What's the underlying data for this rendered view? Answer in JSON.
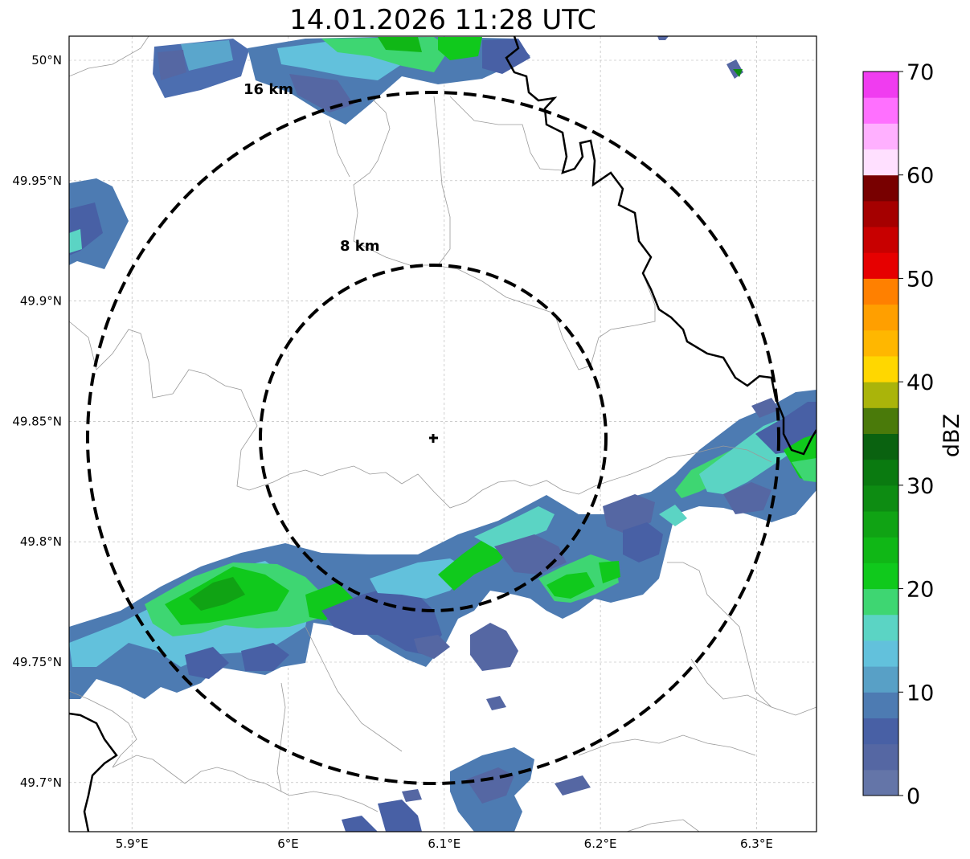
{
  "title": "14.01.2026 11:28 UTC",
  "map": {
    "lon_range": [
      5.86,
      6.34
    ],
    "lat_range": [
      49.68,
      50.01
    ],
    "lon_ticks": [
      {
        "value": 5.9,
        "label": "5.9°E"
      },
      {
        "value": 6.0,
        "label": "6°E"
      },
      {
        "value": 6.1,
        "label": "6.1°E"
      },
      {
        "value": 6.2,
        "label": "6.2°E"
      },
      {
        "value": 6.3,
        "label": "6.3°E"
      }
    ],
    "lat_ticks": [
      {
        "value": 50.0,
        "label": "50°N"
      },
      {
        "value": 49.95,
        "label": "49.95°N"
      },
      {
        "value": 49.9,
        "label": "49.9°N"
      },
      {
        "value": 49.85,
        "label": "49.85°N"
      },
      {
        "value": 49.8,
        "label": "49.8°N"
      },
      {
        "value": 49.75,
        "label": "49.75°N"
      },
      {
        "value": 49.7,
        "label": "49.7°N"
      }
    ],
    "grid": true,
    "radar_site": {
      "lon": 6.094,
      "lat": 49.843
    },
    "range_rings": [
      {
        "km": 8,
        "label": "8 km"
      },
      {
        "km": 16,
        "label": "16 km"
      }
    ]
  },
  "colorbar": {
    "unit": "dBZ",
    "min": 0,
    "max": 70,
    "step": 2.5,
    "tick_labels": [
      "0",
      "10",
      "20",
      "30",
      "40",
      "50",
      "60",
      "70"
    ],
    "colors": [
      "#6475a8",
      "#5567a3",
      "#4860a5",
      "#4d7bb2",
      "#58a0c6",
      "#62c1dc",
      "#5bd4c4",
      "#3ed672",
      "#10c91c",
      "#10b716",
      "#10a314",
      "#0d8c12",
      "#0a7a10",
      "#0a6210",
      "#4a7a0a",
      "#aab40a",
      "#ffd700",
      "#ffb700",
      "#ff9f00",
      "#ff8000",
      "#e60000",
      "#c80000",
      "#a50000",
      "#780000",
      "#ffe0ff",
      "#ffb0ff",
      "#ff70ff",
      "#f03cf0"
    ]
  },
  "borders": {
    "color_country": "#000000",
    "color_admin": "#9a9a9a"
  }
}
